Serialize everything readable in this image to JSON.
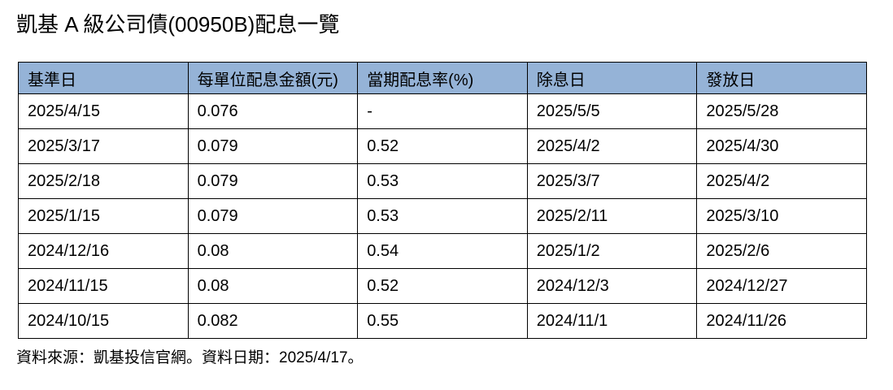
{
  "chart_data": {
    "type": "table",
    "title": "凱基 A 級公司債(00950B)配息一覽",
    "columns": [
      "基準日",
      "每單位配息金額(元)",
      "當期配息率(%)",
      "除息日",
      "發放日"
    ],
    "rows": [
      [
        "2025/4/15",
        "0.076",
        "-",
        "2025/5/5",
        "2025/5/28"
      ],
      [
        "2025/3/17",
        "0.079",
        "0.52",
        "2025/4/2",
        "2025/4/30"
      ],
      [
        "2025/2/18",
        "0.079",
        "0.53",
        "2025/3/7",
        "2025/4/2"
      ],
      [
        "2025/1/15",
        "0.079",
        "0.53",
        "2025/2/11",
        "2025/3/10"
      ],
      [
        "2024/12/16",
        "0.08",
        "0.54",
        "2025/1/2",
        "2025/2/6"
      ],
      [
        "2024/11/15",
        "0.08",
        "0.52",
        "2024/12/3",
        "2024/12/27"
      ],
      [
        "2024/10/15",
        "0.082",
        "0.55",
        "2024/11/1",
        "2024/11/26"
      ]
    ],
    "source_note": "資料來源：凱基投信官網。資料日期：2025/4/17。",
    "header_bg": "#95B3D7",
    "border_color": "#000000",
    "text_color": "#000000",
    "legend_position": "none",
    "grid": true
  }
}
